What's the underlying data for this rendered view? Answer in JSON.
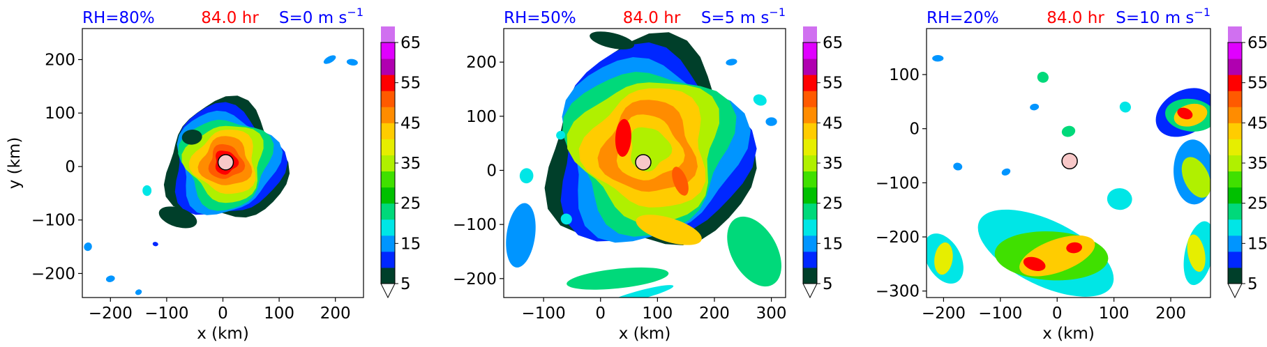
{
  "colorbar": {
    "colors": [
      "#003f2a",
      "#0027ff",
      "#0095ff",
      "#00e6e6",
      "#00d97a",
      "#00c000",
      "#40e000",
      "#b0f000",
      "#e6ee00",
      "#ffcc00",
      "#ff8c00",
      "#ff5a00",
      "#ff0000",
      "#b000b0",
      "#e000ff",
      "#d070f0",
      "#f5c8f0"
    ],
    "tick_labels": [
      "5",
      "15",
      "25",
      "35",
      "45",
      "55",
      "65"
    ],
    "extend": "both"
  },
  "chart_data": [
    {
      "type": "heatmap",
      "title_left": "RH=80%",
      "title_center": "84.0 hr",
      "title_right": "S=0 m s",
      "title_right_sup": "−1",
      "xlabel": "x (km)",
      "ylabel": "y (km)",
      "xlim": [
        -250,
        250
      ],
      "ylim": [
        -245,
        258
      ],
      "xticks": [
        -200,
        -100,
        0,
        100,
        200
      ],
      "xtick_labels": [
        "−200",
        "−100",
        "0",
        "100",
        "200"
      ],
      "yticks": [
        -200,
        -100,
        0,
        100,
        200
      ],
      "ytick_labels": [
        "−200",
        "−100",
        "0",
        "100",
        "200"
      ],
      "center_marker": [
        5,
        8
      ],
      "features": [
        {
          "kind": "ring",
          "x": 5,
          "y": 8,
          "rx": 105,
          "ry": 110,
          "level": 0
        },
        {
          "kind": "ring",
          "x": 5,
          "y": 8,
          "rx": 96,
          "ry": 102,
          "level": 1
        },
        {
          "kind": "ring",
          "x": 5,
          "y": 8,
          "rx": 88,
          "ry": 94,
          "level": 2
        },
        {
          "kind": "ring",
          "x": 5,
          "y": 8,
          "rx": 78,
          "ry": 84,
          "level": 4
        },
        {
          "kind": "ring",
          "x": 5,
          "y": 8,
          "rx": 68,
          "ry": 72,
          "level": 7
        },
        {
          "kind": "ring",
          "x": 5,
          "y": 8,
          "rx": 56,
          "ry": 60,
          "level": 9
        },
        {
          "kind": "ring",
          "x": 5,
          "y": 8,
          "rx": 44,
          "ry": 46,
          "level": 10
        },
        {
          "kind": "ring",
          "x": 5,
          "y": 8,
          "rx": 30,
          "ry": 32,
          "level": 11
        },
        {
          "kind": "ring",
          "x": 5,
          "y": 8,
          "rx": 20,
          "ry": 22,
          "level": 12
        },
        {
          "kind": "ring",
          "x": 5,
          "y": 8,
          "rx": 12,
          "ry": 14,
          "level": 10
        },
        {
          "kind": "ring",
          "x": 5,
          "y": 8,
          "rx": 8,
          "ry": 10,
          "level": 8
        },
        {
          "kind": "blob",
          "x": -80,
          "y": -95,
          "rx": 35,
          "ry": 18,
          "level": 0
        },
        {
          "kind": "blob",
          "x": -55,
          "y": 55,
          "rx": 18,
          "ry": 14,
          "level": 0
        },
        {
          "kind": "blob",
          "x": 190,
          "y": 200,
          "rx": 12,
          "ry": 6,
          "level": 2
        },
        {
          "kind": "blob",
          "x": 230,
          "y": 195,
          "rx": 10,
          "ry": 6,
          "level": 2
        },
        {
          "kind": "blob",
          "x": -200,
          "y": -210,
          "rx": 8,
          "ry": 6,
          "level": 2
        },
        {
          "kind": "blob",
          "x": -240,
          "y": -150,
          "rx": 7,
          "ry": 8,
          "level": 2
        },
        {
          "kind": "blob",
          "x": -135,
          "y": -45,
          "rx": 8,
          "ry": 10,
          "level": 3
        },
        {
          "kind": "blob",
          "x": -150,
          "y": -235,
          "rx": 6,
          "ry": 5,
          "level": 2
        },
        {
          "kind": "blob",
          "x": -120,
          "y": -145,
          "rx": 5,
          "ry": 4,
          "level": 1
        }
      ]
    },
    {
      "type": "heatmap",
      "title_left": "RH=50%",
      "title_center": "84.0 hr",
      "title_right": "S=5 m s",
      "title_right_sup": "−1",
      "xlabel": "x (km)",
      "ylabel": "",
      "xlim": [
        -170,
        325
      ],
      "ylim": [
        -235,
        262
      ],
      "xticks": [
        -100,
        0,
        100,
        200,
        300
      ],
      "xtick_labels": [
        "−100",
        "0",
        "100",
        "200",
        "300"
      ],
      "yticks": [
        -200,
        -100,
        0,
        100,
        200
      ],
      "ytick_labels": [
        "−200",
        "−100",
        "0",
        "100",
        "200"
      ],
      "center_marker": [
        75,
        15
      ],
      "features": [
        {
          "kind": "ring",
          "x": 85,
          "y": 40,
          "rx": 175,
          "ry": 190,
          "level": 0
        },
        {
          "kind": "ring",
          "x": 85,
          "y": 40,
          "rx": 165,
          "ry": 178,
          "level": 1
        },
        {
          "kind": "ring",
          "x": 85,
          "y": 40,
          "rx": 155,
          "ry": 165,
          "level": 2
        },
        {
          "kind": "ring",
          "x": 85,
          "y": 40,
          "rx": 140,
          "ry": 150,
          "level": 4
        },
        {
          "kind": "ring",
          "x": 85,
          "y": 40,
          "rx": 125,
          "ry": 130,
          "level": 7
        },
        {
          "kind": "ring",
          "x": 85,
          "y": 40,
          "rx": 105,
          "ry": 110,
          "level": 9
        },
        {
          "kind": "ring",
          "x": 85,
          "y": 40,
          "rx": 80,
          "ry": 85,
          "level": 10
        },
        {
          "kind": "ring",
          "x": 85,
          "y": 40,
          "rx": 55,
          "ry": 60,
          "level": 9
        },
        {
          "kind": "ring",
          "x": 85,
          "y": 40,
          "rx": 35,
          "ry": 40,
          "level": 7
        },
        {
          "kind": "blob",
          "x": 40,
          "y": 60,
          "rx": 14,
          "ry": 35,
          "level": 12
        },
        {
          "kind": "blob",
          "x": 140,
          "y": -20,
          "rx": 12,
          "ry": 28,
          "level": 11
        },
        {
          "kind": "blob",
          "x": 120,
          "y": -110,
          "rx": 60,
          "ry": 22,
          "level": 9
        },
        {
          "kind": "blob",
          "x": 30,
          "y": -200,
          "rx": 90,
          "ry": 18,
          "level": 4
        },
        {
          "kind": "blob",
          "x": 270,
          "y": -150,
          "rx": 40,
          "ry": 70,
          "level": 4
        },
        {
          "kind": "blob",
          "x": -140,
          "y": -120,
          "rx": 25,
          "ry": 60,
          "level": 2
        },
        {
          "kind": "blob",
          "x": 70,
          "y": -230,
          "rx": 60,
          "ry": 8,
          "level": 3
        },
        {
          "kind": "blob",
          "x": 280,
          "y": 130,
          "rx": 12,
          "ry": 10,
          "level": 3
        },
        {
          "kind": "blob",
          "x": 300,
          "y": 90,
          "rx": 10,
          "ry": 8,
          "level": 2
        },
        {
          "kind": "blob",
          "x": -70,
          "y": 65,
          "rx": 8,
          "ry": 8,
          "level": 3
        },
        {
          "kind": "blob",
          "x": 20,
          "y": 240,
          "rx": 40,
          "ry": 14,
          "level": 0
        },
        {
          "kind": "blob",
          "x": 230,
          "y": 200,
          "rx": 10,
          "ry": 6,
          "level": 2
        },
        {
          "kind": "blob",
          "x": -60,
          "y": -90,
          "rx": 10,
          "ry": 10,
          "level": 3
        },
        {
          "kind": "blob",
          "x": -130,
          "y": -10,
          "rx": 12,
          "ry": 14,
          "level": 3
        }
      ]
    },
    {
      "type": "heatmap",
      "title_left": "RH=20%",
      "title_center": "84.0 hr",
      "title_right": "S=10 m s",
      "title_right_sup": "−1",
      "xlabel": "x (km)",
      "ylabel": "",
      "xlim": [
        -230,
        270
      ],
      "ylim": [
        -312,
        185
      ],
      "xticks": [
        -200,
        -100,
        0,
        100,
        200
      ],
      "xtick_labels": [
        "−200",
        "−100",
        "0",
        "100",
        "200"
      ],
      "yticks": [
        -300,
        -200,
        -100,
        0,
        100
      ],
      "ytick_labels": [
        "−300",
        "−200",
        "−100",
        "0",
        "100"
      ],
      "center_marker": [
        22,
        -60
      ],
      "features": [
        {
          "kind": "blob",
          "x": 225,
          "y": 30,
          "rx": 55,
          "ry": 40,
          "level": 1
        },
        {
          "kind": "blob",
          "x": 235,
          "y": 25,
          "rx": 45,
          "ry": 30,
          "level": 4
        },
        {
          "kind": "blob",
          "x": 235,
          "y": 25,
          "rx": 30,
          "ry": 20,
          "level": 9
        },
        {
          "kind": "blob",
          "x": 225,
          "y": 28,
          "rx": 14,
          "ry": 10,
          "level": 12
        },
        {
          "kind": "blob",
          "x": 240,
          "y": -80,
          "rx": 35,
          "ry": 60,
          "level": 2
        },
        {
          "kind": "blob",
          "x": 245,
          "y": -90,
          "rx": 22,
          "ry": 40,
          "level": 7
        },
        {
          "kind": "blob",
          "x": 250,
          "y": -230,
          "rx": 25,
          "ry": 60,
          "level": 3
        },
        {
          "kind": "blob",
          "x": 245,
          "y": -230,
          "rx": 15,
          "ry": 35,
          "level": 8
        },
        {
          "kind": "blob",
          "x": -20,
          "y": -230,
          "rx": 130,
          "ry": 60,
          "level": 3
        },
        {
          "kind": "blob",
          "x": -10,
          "y": -235,
          "rx": 100,
          "ry": 45,
          "level": 6
        },
        {
          "kind": "blob",
          "x": 0,
          "y": -235,
          "rx": 70,
          "ry": 30,
          "level": 9
        },
        {
          "kind": "blob",
          "x": -40,
          "y": -250,
          "rx": 20,
          "ry": 12,
          "level": 12
        },
        {
          "kind": "blob",
          "x": 30,
          "y": -220,
          "rx": 14,
          "ry": 10,
          "level": 12
        },
        {
          "kind": "blob",
          "x": -200,
          "y": -240,
          "rx": 30,
          "ry": 50,
          "level": 3
        },
        {
          "kind": "blob",
          "x": -200,
          "y": -240,
          "rx": 16,
          "ry": 30,
          "level": 8
        },
        {
          "kind": "blob",
          "x": 20,
          "y": -5,
          "rx": 12,
          "ry": 10,
          "level": 4
        },
        {
          "kind": "blob",
          "x": -25,
          "y": 95,
          "rx": 10,
          "ry": 10,
          "level": 4
        },
        {
          "kind": "blob",
          "x": -210,
          "y": 130,
          "rx": 10,
          "ry": 6,
          "level": 2
        },
        {
          "kind": "blob",
          "x": -90,
          "y": -80,
          "rx": 8,
          "ry": 6,
          "level": 2
        },
        {
          "kind": "blob",
          "x": -175,
          "y": -70,
          "rx": 8,
          "ry": 7,
          "level": 2
        },
        {
          "kind": "blob",
          "x": -40,
          "y": 40,
          "rx": 8,
          "ry": 6,
          "level": 2
        },
        {
          "kind": "blob",
          "x": 120,
          "y": 40,
          "rx": 10,
          "ry": 10,
          "level": 3
        },
        {
          "kind": "blob",
          "x": 110,
          "y": -130,
          "rx": 22,
          "ry": 20,
          "level": 3
        }
      ]
    }
  ]
}
